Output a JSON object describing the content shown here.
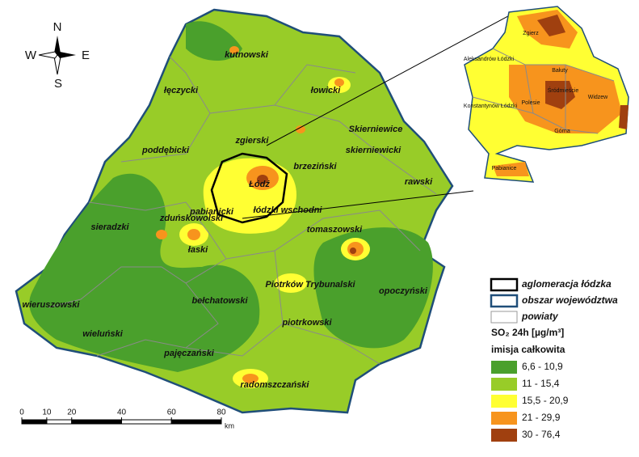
{
  "map": {
    "compass": {
      "n": "N",
      "e": "E",
      "s": "S",
      "w": "W"
    },
    "districts": [
      "kutnowski",
      "łęczycki",
      "łowicki",
      "zgierski",
      "Skierniewice",
      "poddębicki",
      "skierniewicki",
      "brzeziński",
      "Łódź",
      "rawski",
      "pabianicki",
      "łódzki wschodni",
      "sieradzki",
      "zduńskowolski",
      "łaski",
      "tomaszowski",
      "Piotrków Trybunalski",
      "opoczyński",
      "wieruszowski",
      "bełchatowski",
      "piotrkowski",
      "wieluński",
      "pajęczański",
      "radomszczański"
    ],
    "inset": [
      "Zgierz",
      "Aleksandrów Łódzki",
      "Bałuty",
      "Śródmieście",
      "Widzew",
      "Polesie",
      "Konstantynów Łódzki",
      "Górna",
      "Pabianice"
    ],
    "scale": {
      "ticks": [
        0,
        10,
        20,
        40,
        60,
        80
      ],
      "unit": "km"
    },
    "legend": {
      "outlines": [
        {
          "label": "aglomeracja łódzka",
          "color": "#000000"
        },
        {
          "label": "obszar województwa",
          "color": "#1f4e79"
        },
        {
          "label": "powiaty",
          "color": "#999999"
        }
      ],
      "title": "SO₂ 24h [µg/m³]",
      "subtitle": "imisja całkowita",
      "classes": [
        {
          "label": "6,6 - 10,9",
          "color": "#4aa02c"
        },
        {
          "label": "11 - 15,4",
          "color": "#98cc28"
        },
        {
          "label": "15,5 - 20,9",
          "color": "#ffff33"
        },
        {
          "label": "21 - 29,9",
          "color": "#f7941d"
        },
        {
          "label": "30 - 76,4",
          "color": "#a0400f"
        }
      ]
    }
  }
}
